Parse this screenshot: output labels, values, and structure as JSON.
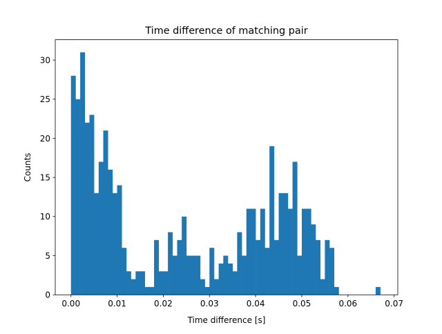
{
  "chart_data": {
    "type": "bar",
    "title": "Time difference of matching pair",
    "xlabel": "Time difference [s]",
    "ylabel": "Counts",
    "xlim": [
      -0.0034,
      0.0708
    ],
    "ylim": [
      0,
      32.6
    ],
    "xticks": [
      0.0,
      0.01,
      0.02,
      0.03,
      0.04,
      0.05,
      0.06,
      0.07
    ],
    "xtick_labels": [
      "0.00",
      "0.01",
      "0.02",
      "0.03",
      "0.04",
      "0.05",
      "0.06",
      "0.07"
    ],
    "yticks": [
      0,
      5,
      10,
      15,
      20,
      25,
      30
    ],
    "ytick_labels": [
      "0",
      "5",
      "10",
      "15",
      "20",
      "25",
      "30"
    ],
    "bin_start": 0.0,
    "bin_width": 0.001,
    "values": [
      28,
      25,
      31,
      22,
      23,
      13,
      17,
      21,
      16,
      13,
      14,
      6,
      3,
      2,
      3,
      3,
      1,
      1,
      7,
      3,
      3,
      8,
      5,
      7,
      10,
      5,
      5,
      5,
      2,
      1,
      6,
      2,
      4,
      5,
      4,
      3,
      8,
      5,
      11,
      11,
      7,
      11,
      6,
      19,
      7,
      13,
      13,
      11,
      17,
      5,
      11,
      11,
      9,
      7,
      2,
      7,
      6,
      1,
      0,
      0,
      0,
      0,
      0,
      0,
      0,
      0,
      1
    ],
    "bar_color": "#1f77b4",
    "grid": false,
    "legend": "none"
  }
}
